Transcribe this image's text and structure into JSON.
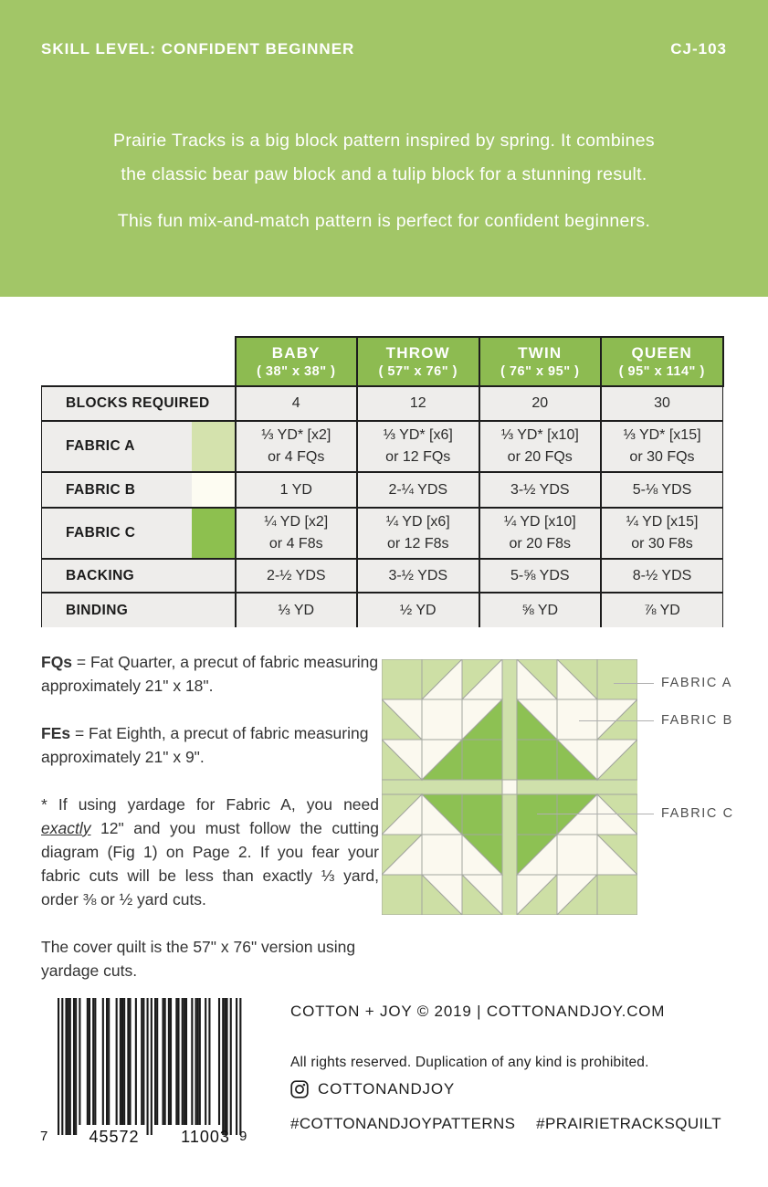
{
  "banner": {
    "background_color": "#a2c667",
    "skill_level": "SKILL LEVEL: CONFIDENT BEGINNER",
    "pattern_code": "CJ-103",
    "desc_line1": "Prairie Tracks is a big block pattern inspired by spring. It combines",
    "desc_line2": "the classic bear paw block and a tulip block for a stunning result.",
    "desc_line3": "This fun mix-and-match pattern is perfect for confident beginners."
  },
  "table": {
    "header_color": "#8dbb51",
    "columns": [
      {
        "name": "BABY",
        "size": "( 38\" x 38\" )"
      },
      {
        "name": "THROW",
        "size": "( 57\" x 76\" )"
      },
      {
        "name": "TWIN",
        "size": "( 76\" x 95\" )"
      },
      {
        "name": "QUEEN",
        "size": "( 95\" x 114\" )"
      }
    ],
    "rows": [
      {
        "label": "BLOCKS REQUIRED",
        "swatch": null,
        "cells": [
          [
            "4"
          ],
          [
            "12"
          ],
          [
            "20"
          ],
          [
            "30"
          ]
        ]
      },
      {
        "label": "FABRIC A",
        "swatch": "#d4e2ad",
        "cells": [
          [
            "⅓ YD* [x2]",
            "or 4 FQs"
          ],
          [
            "⅓ YD* [x6]",
            "or 12 FQs"
          ],
          [
            "⅓ YD* [x10]",
            "or 20 FQs"
          ],
          [
            "⅓ YD* [x15]",
            "or 30 FQs"
          ]
        ]
      },
      {
        "label": "FABRIC B",
        "swatch": "#fdfcf2",
        "cells": [
          [
            "1 YD"
          ],
          [
            "2-¼ YDS"
          ],
          [
            "3-½ YDS"
          ],
          [
            "5-⅛ YDS"
          ]
        ]
      },
      {
        "label": "FABRIC C",
        "swatch": "#8dc04f",
        "cells": [
          [
            "¼ YD [x2]",
            "or 4 F8s"
          ],
          [
            "¼ YD [x6]",
            "or 12 F8s"
          ],
          [
            "¼ YD [x10]",
            "or 20 F8s"
          ],
          [
            "¼ YD [x15]",
            "or 30 F8s"
          ]
        ]
      },
      {
        "label": "BACKING",
        "swatch": null,
        "cells": [
          [
            "2-½ YDS"
          ],
          [
            "3-½ YDS"
          ],
          [
            "5-⅝ YDS"
          ],
          [
            "8-½ YDS"
          ]
        ]
      },
      {
        "label": "BINDING",
        "swatch": null,
        "cells": [
          [
            "⅓ YD"
          ],
          [
            "½ YD"
          ],
          [
            "⅝ YD"
          ],
          [
            "⅞ YD"
          ]
        ]
      }
    ]
  },
  "notes": {
    "paragraphs": [
      {
        "justify": false,
        "segments": [
          {
            "t": "FQs",
            "b": true
          },
          {
            "t": " = Fat Quarter, a precut of fabric measuring approximately 21\" x 18\"."
          }
        ]
      },
      {
        "justify": false,
        "segments": [
          {
            "t": "FEs",
            "b": true
          },
          {
            "t": " = Fat Eighth, a precut of fabric measuring approximately 21\" x 9\"."
          }
        ]
      },
      {
        "justify": true,
        "segments": [
          {
            "t": "* If using yardage for Fabric A, you need "
          },
          {
            "t": "exactly",
            "iu": true
          },
          {
            "t": " 12\" and you must follow the cutting diagram (Fig 1) on Page 2. If you fear your fabric cuts will be less than exactly ⅓ yard, order ⅜ or ½ yard cuts."
          }
        ]
      },
      {
        "justify": false,
        "segments": [
          {
            "t": "The cover quilt is the 57\" x 76\" version using yardage cuts."
          }
        ]
      }
    ]
  },
  "diagram": {
    "labels": [
      "FABRIC A",
      "FABRIC B",
      "FABRIC C"
    ],
    "colors": {
      "A": "#cddfa5",
      "B": "#fbf9ef",
      "C": "#8dc153",
      "sash": "#cfe0ab",
      "grid": "#a3a69f"
    },
    "top_left_quadrant": [
      [
        "A",
        "/:A.B",
        "/:A.B"
      ],
      [
        "\\:B.A",
        "B",
        "/:B.C"
      ],
      [
        "\\:B.A",
        "/:B.C",
        "C"
      ]
    ]
  },
  "barcode": {
    "code": "745572110039",
    "first_digit": "7",
    "group1": "45572",
    "group2": "11003",
    "last_digit": "9"
  },
  "footer": {
    "copyright": "COTTON + JOY © 2019   |   COTTONANDJOY.COM",
    "rights": "All rights reserved. Duplication of any kind is prohibited.",
    "instagram_handle": "COTTONANDJOY",
    "hashtags": [
      "#COTTONANDJOYPATTERNS",
      "#PRAIRIETRACKSQUILT"
    ]
  }
}
